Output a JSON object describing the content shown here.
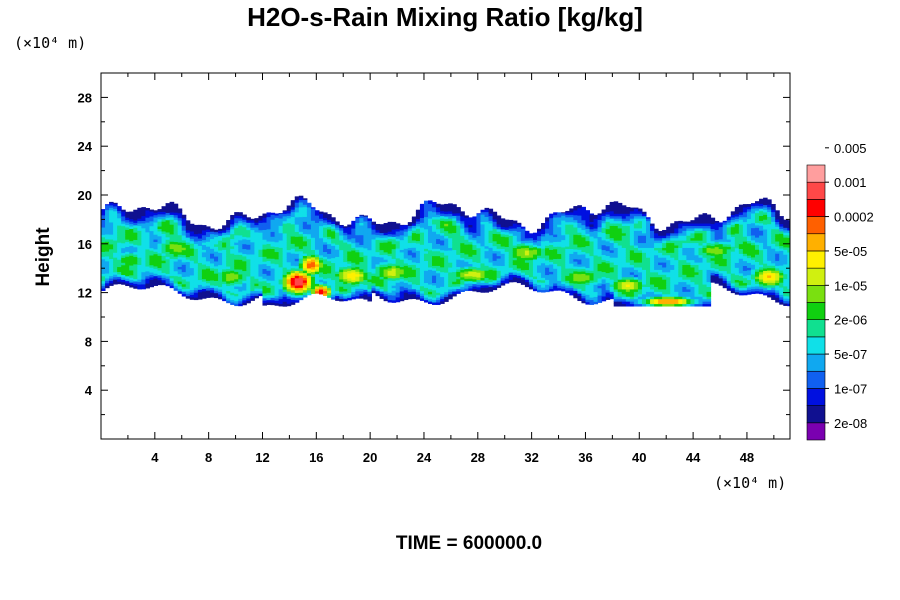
{
  "chart_data": {
    "type": "heatmap",
    "title": "H2O-s-Rain Mixing Ratio [kg/kg]",
    "ylabel": "Height",
    "xlabel": "",
    "x_unit": "(×10⁴ m)",
    "y_unit": "(×10⁴ m)",
    "xlim": [
      0,
      51.2
    ],
    "ylim": [
      0,
      30
    ],
    "x_ticks": [
      4,
      8,
      12,
      16,
      20,
      24,
      28,
      32,
      36,
      40,
      44,
      48
    ],
    "y_ticks": [
      4,
      8,
      12,
      16,
      20,
      24,
      28
    ],
    "colorbar": {
      "levels": [
        "2e-08",
        "1e-07",
        "5e-07",
        "2e-06",
        "1e-05",
        "5e-05",
        "0.0002",
        "0.001",
        "0.005"
      ],
      "colors": [
        "#7a00b0",
        "#101090",
        "#0010e0",
        "#1060f0",
        "#10a8f0",
        "#10e0e8",
        "#10e090",
        "#10d010",
        "#7ae010",
        "#d0f010",
        "#fff000",
        "#ffb000",
        "#ff6000",
        "#ff0000",
        "#ff4848",
        "#ff9e9e"
      ]
    },
    "field_description": "Rain layer spanning x≈0–51 (×10⁴ m), heights ≈11–19 (×10⁴ m); maxima (≥0.001 kg/kg) near x≈14–16, y≈12–14 and x≈40–44, y≈11",
    "time_label": "TIME = 600000.0"
  }
}
